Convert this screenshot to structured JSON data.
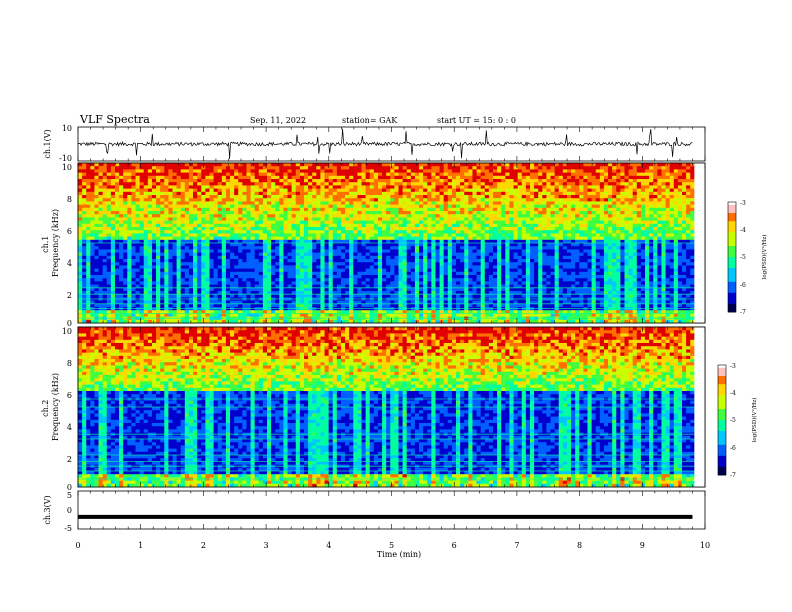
{
  "header": {
    "title": "VLF Spectra",
    "date": "Sep. 11, 2022",
    "station": "station= GAK",
    "start": "start  UT  =   15: 0  : 0"
  },
  "chart_data": [
    {
      "id": "ch1-waveform",
      "type": "line",
      "ylabel": "ch.1(V)",
      "ylim": [
        -10,
        10
      ],
      "y_ticks": [
        "10",
        "-10"
      ],
      "xlim": [
        0,
        10
      ],
      "series": [
        {
          "x": [
            0,
            0.2,
            0.4,
            0.6,
            0.8,
            1.0,
            1.2,
            1.4,
            1.6,
            1.8,
            2.0,
            2.2,
            2.4,
            2.6,
            2.8,
            3.0,
            3.2,
            3.4,
            3.6,
            3.8,
            4.0,
            4.2,
            4.4,
            4.6,
            4.8,
            5.0,
            5.2,
            5.4,
            5.6,
            5.8,
            6.0,
            6.2,
            6.4,
            6.6,
            6.8,
            7.0,
            7.2,
            7.4,
            7.6,
            7.8,
            8.0,
            8.2,
            8.4,
            8.6,
            8.8,
            9.0,
            9.2,
            9.4,
            9.6,
            9.8
          ],
          "y": [
            0,
            -1,
            1,
            -0.5,
            0.5,
            0,
            -1,
            0.8,
            -0.5,
            1,
            0,
            -0.8,
            0.6,
            -0.4,
            0.9,
            0,
            -0.6,
            0.7,
            -0.9,
            0.4,
            0,
            -0.5,
            0.8,
            -0.7,
            0.3,
            0,
            -0.9,
            0.6,
            -0.3,
            0.8,
            0,
            -0.7,
            0.5,
            -0.8,
            0.6,
            0,
            -0.4,
            0.9,
            -0.6,
            0.5,
            0,
            -0.8,
            0.4,
            -0.5,
            0.7,
            0,
            -0.6,
            0.8,
            -0.4,
            0.3
          ]
        }
      ]
    },
    {
      "id": "ch1-spectrogram",
      "type": "heatmap",
      "ylabel": "ch.1\nFrequency  (kHz)",
      "ylim": [
        0,
        10
      ],
      "y_ticks": [
        "10",
        "8",
        "6",
        "4",
        "2",
        "0"
      ],
      "xlim": [
        0,
        10
      ],
      "colorbar": {
        "label": "log(PSD)(V²/Hz)",
        "range": [
          -7,
          -3
        ],
        "ticks": [
          "-3",
          "-4",
          "-5",
          "-6",
          "-7"
        ]
      },
      "band_edge_khz": 5.3,
      "horizontal_lines_khz": [
        0.3,
        0.6,
        0.9,
        1.2,
        1.5,
        1.8,
        2.2,
        5.0
      ]
    },
    {
      "id": "ch2-spectrogram",
      "type": "heatmap",
      "ylabel": "ch.2\nFrequency  (kHz)",
      "ylim": [
        0,
        10
      ],
      "y_ticks": [
        "10",
        "8",
        "6",
        "4",
        "2",
        "0"
      ],
      "xlim": [
        0,
        10
      ],
      "colorbar": {
        "label": "log(PSD)(V²/Hz)",
        "range": [
          -7,
          -3
        ],
        "ticks": [
          "-3",
          "-4",
          "-5",
          "-6",
          "-7"
        ]
      },
      "band_edge_khz": 6.0,
      "horizontal_lines_khz": [
        0.5,
        1.0,
        1.3,
        1.6,
        2.0,
        3.0,
        3.3,
        5.0,
        5.5
      ]
    },
    {
      "id": "ch3-waveform",
      "type": "line",
      "ylabel": "ch.3(V)",
      "ylim": [
        -5,
        5
      ],
      "y_ticks": [
        "5",
        "0",
        "-5"
      ],
      "xlim": [
        0,
        10
      ],
      "series": [
        {
          "x": [
            0,
            9.8
          ],
          "y": [
            -1.8,
            -1.8
          ]
        }
      ]
    }
  ],
  "x_axis": {
    "label": "Time  (min)",
    "ticks": [
      "0",
      "1",
      "2",
      "3",
      "4",
      "5",
      "6",
      "7",
      "8",
      "9",
      "10"
    ],
    "range": [
      0,
      10
    ]
  },
  "colors": {
    "scale": [
      "#000050",
      "#0000cc",
      "#0060ff",
      "#00c8ff",
      "#00ffa0",
      "#40ff40",
      "#c8ff00",
      "#ffd700",
      "#ff7000",
      "#e00000"
    ],
    "colorbar_top": "#ffffff"
  }
}
